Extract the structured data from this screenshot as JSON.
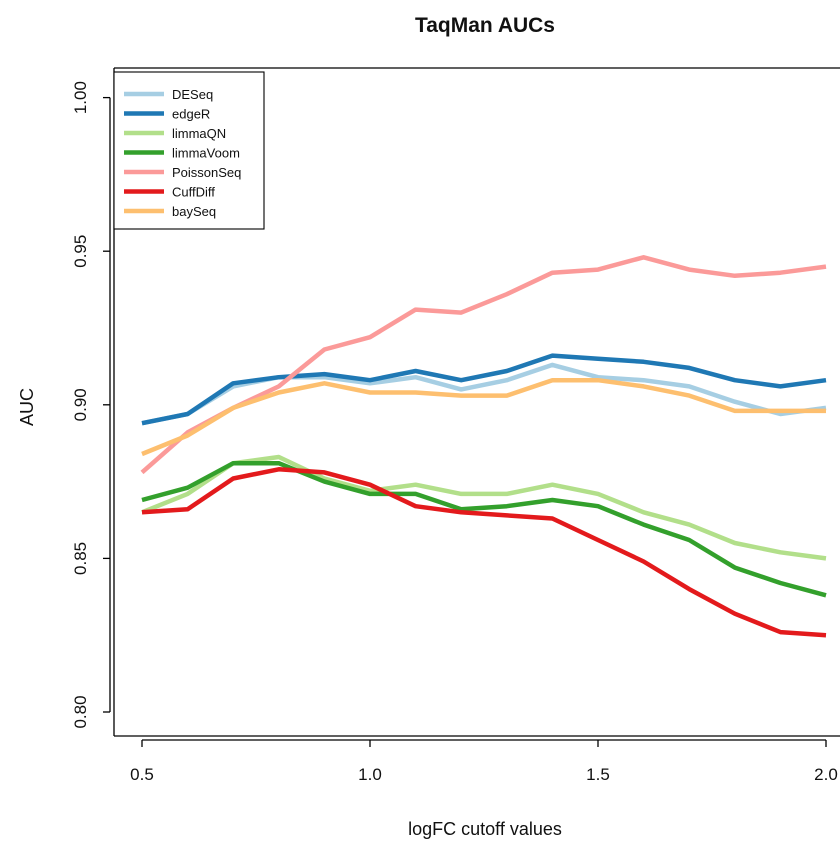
{
  "chart_data": {
    "type": "line",
    "title": "TaqMan AUCs",
    "xlabel": "logFC cutoff values",
    "ylabel": "AUC",
    "xlim": [
      0.45,
      2.0
    ],
    "ylim": [
      0.79,
      1.01
    ],
    "xticks": [
      "0.5",
      "1.0",
      "1.5",
      "2.0"
    ],
    "yticks": [
      "0.80",
      "0.85",
      "0.90",
      "0.95",
      "1.00"
    ],
    "legend_position": "top-left",
    "grid": false,
    "x": [
      0.5,
      0.6,
      0.7,
      0.8,
      0.9,
      1.0,
      1.1,
      1.2,
      1.3,
      1.4,
      1.5,
      1.6,
      1.7,
      1.8,
      1.9,
      2.0
    ],
    "series": [
      {
        "name": "DESeq",
        "color": "#a6cee3",
        "values": [
          0.894,
          0.897,
          0.906,
          0.909,
          0.909,
          0.907,
          0.909,
          0.905,
          0.908,
          0.913,
          0.909,
          0.908,
          0.906,
          0.901,
          0.897,
          0.899
        ]
      },
      {
        "name": "edgeR",
        "color": "#1f78b4",
        "values": [
          0.894,
          0.897,
          0.907,
          0.909,
          0.91,
          0.908,
          0.911,
          0.908,
          0.911,
          0.916,
          0.915,
          0.914,
          0.912,
          0.908,
          0.906,
          0.908
        ]
      },
      {
        "name": "limmaQN",
        "color": "#b2df8a",
        "values": [
          0.865,
          0.871,
          0.881,
          0.883,
          0.876,
          0.872,
          0.874,
          0.871,
          0.871,
          0.874,
          0.871,
          0.865,
          0.861,
          0.855,
          0.852,
          0.85
        ]
      },
      {
        "name": "limmaVoom",
        "color": "#33a02c",
        "values": [
          0.869,
          0.873,
          0.881,
          0.881,
          0.875,
          0.871,
          0.871,
          0.866,
          0.867,
          0.869,
          0.867,
          0.861,
          0.856,
          0.847,
          0.842,
          0.838
        ]
      },
      {
        "name": "PoissonSeq",
        "color": "#fb9a99",
        "values": [
          0.878,
          0.891,
          0.899,
          0.906,
          0.918,
          0.922,
          0.931,
          0.93,
          0.936,
          0.943,
          0.944,
          0.948,
          0.944,
          0.942,
          0.943,
          0.945
        ]
      },
      {
        "name": "CuffDiff",
        "color": "#e31a1c",
        "values": [
          0.865,
          0.866,
          0.876,
          0.879,
          0.878,
          0.874,
          0.867,
          0.865,
          0.864,
          0.863,
          0.856,
          0.849,
          0.84,
          0.832,
          0.826,
          0.825
        ]
      },
      {
        "name": "baySeq",
        "color": "#fdbf6f",
        "values": [
          0.884,
          0.89,
          0.899,
          0.904,
          0.907,
          0.904,
          0.904,
          0.903,
          0.903,
          0.908,
          0.908,
          0.906,
          0.903,
          0.898,
          0.898,
          0.898
        ]
      }
    ]
  }
}
